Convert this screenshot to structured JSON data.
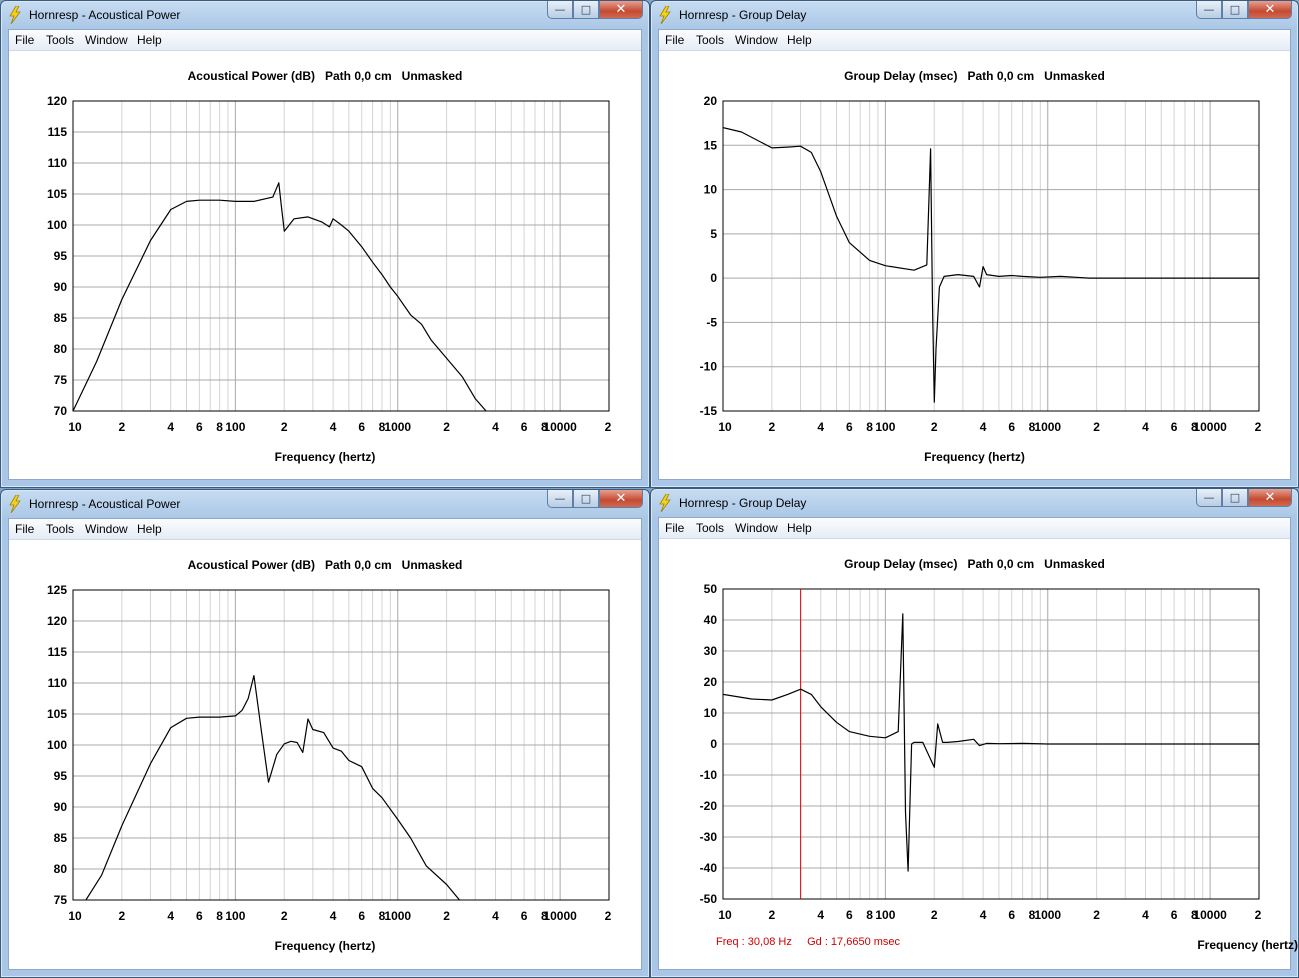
{
  "colors": {
    "trace": "#000000",
    "cursor": "#dd0000",
    "grid_major": "#a8a8a8",
    "grid_minor": "#d4d4d4"
  },
  "windows": [
    {
      "title": "Hornresp - Acoustical Power",
      "menu": [
        "File",
        "Tools",
        "Window",
        "Help"
      ],
      "plot_title": "Acoustical Power (dB)   Path 0,0 cm   Unmasked",
      "x_label": "Frequency (hertz)",
      "x_ticks": [
        "10",
        "2",
        "4",
        "6",
        "8",
        "100",
        "2",
        "4",
        "6",
        "8",
        "1000",
        "2",
        "4",
        "6",
        "8",
        "10000",
        "2"
      ],
      "y_ticks": [
        "120",
        "115",
        "110",
        "105",
        "100",
        "95",
        "90",
        "85",
        "80",
        "75",
        "70"
      ]
    },
    {
      "title": "Hornresp - Group Delay",
      "menu": [
        "File",
        "Tools",
        "Window",
        "Help"
      ],
      "plot_title": "Group Delay (msec)   Path 0,0 cm   Unmasked",
      "x_label": "Frequency (hertz)",
      "x_ticks": [
        "10",
        "2",
        "4",
        "6",
        "8",
        "100",
        "2",
        "4",
        "6",
        "8",
        "1000",
        "2",
        "4",
        "6",
        "8",
        "10000",
        "2"
      ],
      "y_ticks": [
        "20",
        "15",
        "10",
        "5",
        "0",
        "-5",
        "-10",
        "-15"
      ]
    },
    {
      "title": "Hornresp - Acoustical Power",
      "menu": [
        "File",
        "Tools",
        "Window",
        "Help"
      ],
      "plot_title": "Acoustical Power (dB)   Path 0,0 cm   Unmasked",
      "x_label": "Frequency (hertz)",
      "x_ticks": [
        "10",
        "2",
        "4",
        "6",
        "8",
        "100",
        "2",
        "4",
        "6",
        "8",
        "1000",
        "2",
        "4",
        "6",
        "8",
        "10000",
        "2"
      ],
      "y_ticks": [
        "125",
        "120",
        "115",
        "110",
        "105",
        "100",
        "95",
        "90",
        "85",
        "80",
        "75"
      ]
    },
    {
      "title": "Hornresp - Group Delay",
      "menu": [
        "File",
        "Tools",
        "Window",
        "Help"
      ],
      "plot_title": "Group Delay (msec)   Path 0,0 cm   Unmasked",
      "x_label": "Frequency (hertz)",
      "x_ticks": [
        "10",
        "2",
        "4",
        "6",
        "8",
        "100",
        "2",
        "4",
        "6",
        "8",
        "1000",
        "2",
        "4",
        "6",
        "8",
        "10000",
        "2"
      ],
      "y_ticks": [
        "50",
        "40",
        "30",
        "20",
        "10",
        "0",
        "-10",
        "-20",
        "-30",
        "-40",
        "-50"
      ],
      "readout": "Freq : 30,08 Hz     Gd : 17,6650 msec"
    }
  ],
  "chart_data": [
    {
      "type": "line",
      "xscale": "log",
      "xlim": [
        10,
        20000
      ],
      "ylim": [
        70,
        120
      ],
      "grid": true,
      "title": "Acoustical Power (dB)   Path 0,0 cm   Unmasked",
      "xlabel": "Frequency (hertz)",
      "ylabel": "",
      "x": [
        10,
        14,
        20,
        30,
        40,
        50,
        60,
        80,
        100,
        130,
        170,
        185,
        192,
        200,
        230,
        280,
        340,
        380,
        400,
        450,
        500,
        600,
        700,
        800,
        900,
        1000,
        1200,
        1400,
        1600,
        2000,
        2500,
        3000,
        3500
      ],
      "y": [
        70,
        78,
        88,
        97.5,
        102.5,
        103.8,
        104,
        104,
        103.8,
        103.8,
        104.5,
        106.8,
        103,
        99,
        101,
        101.3,
        100.5,
        99.7,
        101,
        100,
        99,
        96.5,
        94,
        92,
        90,
        88.5,
        85.5,
        84,
        81.5,
        78.5,
        75.5,
        72,
        70
      ]
    },
    {
      "type": "line",
      "xscale": "log",
      "xlim": [
        10,
        20000
      ],
      "ylim": [
        -15,
        20
      ],
      "grid": true,
      "title": "Group Delay (msec)   Path 0,0 cm   Unmasked",
      "xlabel": "Frequency (hertz)",
      "ylabel": "",
      "x": [
        10,
        13,
        20,
        25,
        30,
        35,
        40,
        50,
        60,
        80,
        100,
        150,
        180,
        190,
        195,
        200,
        205,
        215,
        230,
        280,
        350,
        380,
        400,
        420,
        500,
        600,
        700,
        900,
        1200,
        1500,
        1800,
        2500,
        20000
      ],
      "y": [
        17,
        16.5,
        14.7,
        14.8,
        14.9,
        14.2,
        12,
        7,
        4,
        2,
        1.4,
        0.9,
        1.5,
        14.6,
        -3,
        -14,
        -8,
        -1,
        0.2,
        0.4,
        0.2,
        -1,
        1.3,
        0.4,
        0.2,
        0.3,
        0.2,
        0.1,
        0.2,
        0.1,
        0,
        0,
        0
      ]
    },
    {
      "type": "line",
      "xscale": "log",
      "xlim": [
        10,
        20000
      ],
      "ylim": [
        75,
        125
      ],
      "grid": true,
      "title": "Acoustical Power (dB)   Path 0,0 cm   Unmasked",
      "xlabel": "Frequency (hertz)",
      "ylabel": "",
      "x": [
        12,
        15,
        20,
        30,
        40,
        50,
        60,
        80,
        100,
        110,
        120,
        130,
        145,
        160,
        180,
        200,
        220,
        240,
        260,
        280,
        300,
        350,
        400,
        450,
        500,
        600,
        700,
        800,
        1000,
        1200,
        1500,
        2000,
        2400
      ],
      "y": [
        75,
        79,
        87,
        97,
        102.8,
        104.3,
        104.5,
        104.5,
        104.7,
        105.6,
        107.5,
        111.2,
        102,
        94,
        98.5,
        100.2,
        100.6,
        100.4,
        98.8,
        104.2,
        102.5,
        102,
        99.5,
        99,
        97.5,
        96.5,
        93,
        91.5,
        88,
        85,
        80.5,
        77.5,
        75
      ]
    },
    {
      "type": "line",
      "xscale": "log",
      "xlim": [
        10,
        20000
      ],
      "ylim": [
        -50,
        50
      ],
      "grid": true,
      "title": "Group Delay (msec)   Path 0,0 cm   Unmasked",
      "xlabel": "Frequency (hertz)",
      "ylabel": "",
      "cursor": {
        "freq_hz": 30.08,
        "gd_msec": 17.665
      },
      "x": [
        10,
        15,
        20,
        25,
        30.08,
        35,
        40,
        50,
        60,
        80,
        100,
        120,
        128,
        133,
        138,
        145,
        150,
        160,
        170,
        200,
        210,
        220,
        225,
        230,
        240,
        280,
        350,
        380,
        420,
        500,
        700,
        1000,
        1500,
        2000,
        20000
      ],
      "y": [
        16,
        14.5,
        14.2,
        16,
        17.665,
        16,
        12,
        7,
        4,
        2.5,
        2,
        4,
        42,
        -22,
        -41,
        0,
        0.5,
        0.5,
        0.5,
        -7.5,
        6.5,
        2.5,
        0.5,
        0.5,
        0.5,
        0.8,
        1.5,
        -0.5,
        0.2,
        0.1,
        0.2,
        0,
        0,
        0,
        0
      ]
    }
  ]
}
